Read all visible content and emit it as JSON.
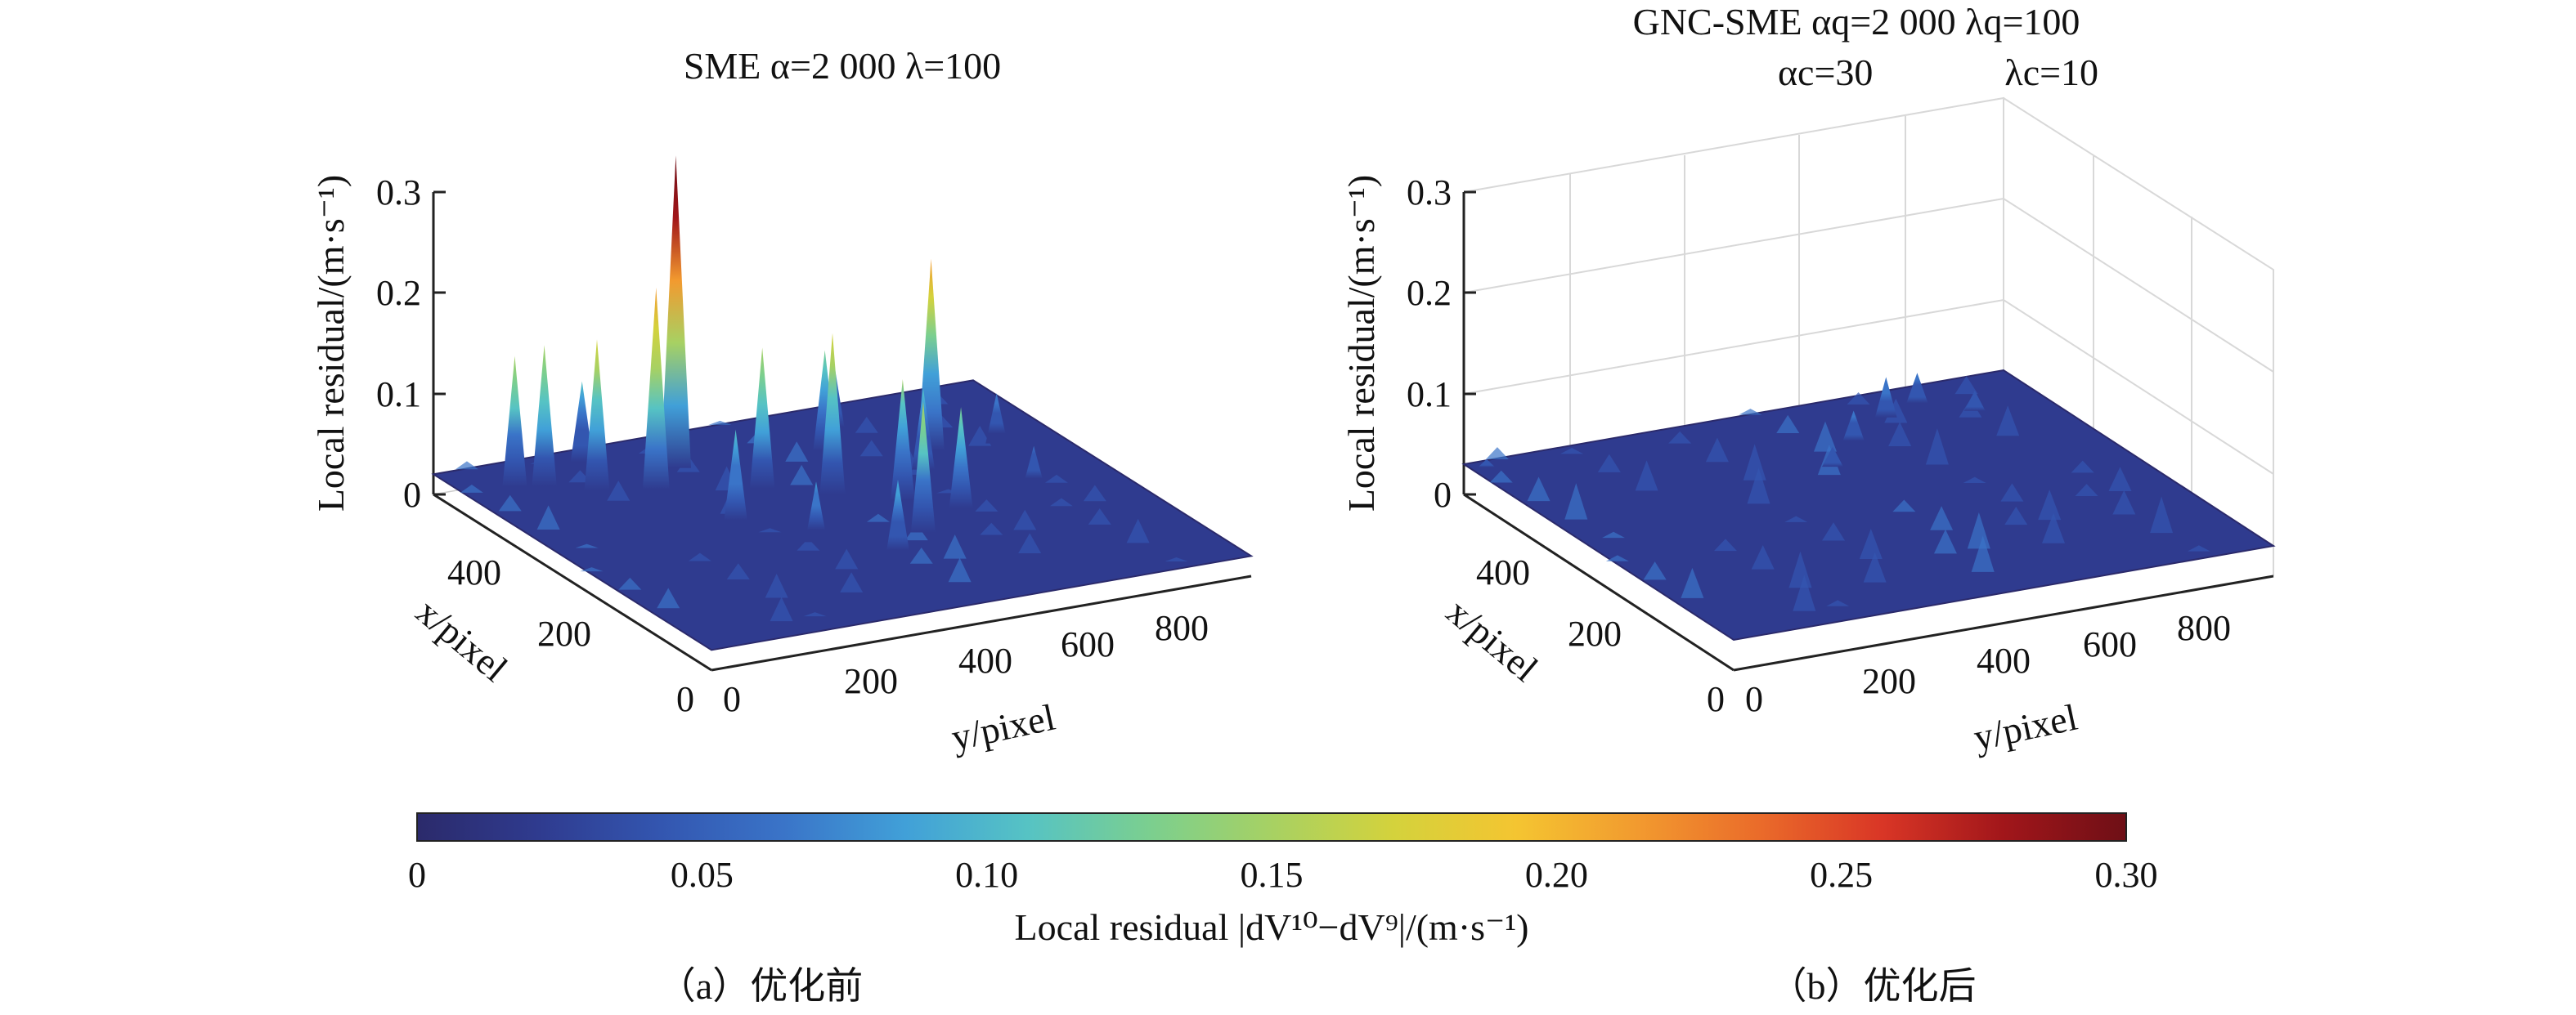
{
  "chart_data": [
    {
      "type": "surface3d",
      "panel": "a",
      "title": "SME α=2 000  λ=100",
      "zlabel": "Local residual/(m·s⁻¹)",
      "xlabel": "x/pixel",
      "ylabel": "y/pixel",
      "z_ticks": [
        "0",
        "0.1",
        "0.2",
        "0.3"
      ],
      "x_ticks": [
        "0",
        "200",
        "400"
      ],
      "y_ticks": [
        "0",
        "200",
        "400",
        "600",
        "800"
      ],
      "zlim": [
        0,
        0.3
      ],
      "xlim": [
        0,
        500
      ],
      "ylim": [
        0,
        900
      ],
      "grid": false,
      "baseline_level": 0.02,
      "peaks": [
        {
          "x": 420,
          "y": 330,
          "z": 0.33
        },
        {
          "x": 380,
          "y": 260,
          "z": 0.22
        },
        {
          "x": 430,
          "y": 120,
          "z": 0.16
        },
        {
          "x": 400,
          "y": 180,
          "z": 0.17
        },
        {
          "x": 440,
          "y": 80,
          "z": 0.15
        },
        {
          "x": 300,
          "y": 480,
          "z": 0.18
        },
        {
          "x": 340,
          "y": 400,
          "z": 0.16
        },
        {
          "x": 260,
          "y": 560,
          "z": 0.14
        },
        {
          "x": 220,
          "y": 620,
          "z": 0.12
        },
        {
          "x": 360,
          "y": 700,
          "z": 0.21
        },
        {
          "x": 320,
          "y": 650,
          "z": 0.1
        },
        {
          "x": 180,
          "y": 520,
          "z": 0.15
        },
        {
          "x": 150,
          "y": 450,
          "z": 0.09
        },
        {
          "x": 400,
          "y": 560,
          "z": 0.12
        },
        {
          "x": 280,
          "y": 300,
          "z": 0.11
        },
        {
          "x": 450,
          "y": 620,
          "z": 0.09
        },
        {
          "x": 200,
          "y": 360,
          "z": 0.08
        },
        {
          "x": 350,
          "y": 800,
          "z": 0.07
        },
        {
          "x": 470,
          "y": 220,
          "z": 0.1
        },
        {
          "x": 240,
          "y": 760,
          "z": 0.06
        }
      ]
    },
    {
      "type": "surface3d",
      "panel": "b",
      "title_line1": "GNC-SME αq=2 000    λq=100",
      "title_line2": "αc=30              λc=10",
      "zlabel": "Local residual/(m·s⁻¹)",
      "xlabel": "x/pixel",
      "ylabel": "y/pixel",
      "z_ticks": [
        "0",
        "0.1",
        "0.2",
        "0.3"
      ],
      "x_ticks": [
        "0",
        "200",
        "400"
      ],
      "y_ticks": [
        "0",
        "200",
        "400",
        "600",
        "800"
      ],
      "zlim": [
        0,
        0.3
      ],
      "xlim": [
        0,
        500
      ],
      "ylim": [
        0,
        900
      ],
      "grid": true,
      "baseline_level": 0.03,
      "peaks": [
        {
          "x": 440,
          "y": 650,
          "z": 0.07
        },
        {
          "x": 400,
          "y": 560,
          "z": 0.06
        },
        {
          "x": 460,
          "y": 720,
          "z": 0.06
        },
        {
          "x": 350,
          "y": 480,
          "z": 0.05
        },
        {
          "x": 420,
          "y": 780,
          "z": 0.05
        },
        {
          "x": 480,
          "y": 20,
          "z": 0.04
        }
      ]
    }
  ],
  "colorbar": {
    "ticks": [
      "0",
      "0.05",
      "0.10",
      "0.15",
      "0.20",
      "0.25",
      "0.30"
    ],
    "range": [
      0,
      0.3
    ],
    "label": "Local residual |dV¹⁰−dV⁹|/(m·s⁻¹)",
    "colors": [
      "#2b2a6b",
      "#2f3b8f",
      "#3356b0",
      "#3a74c8",
      "#41a0d8",
      "#56c3c4",
      "#7bcf8f",
      "#a7d163",
      "#d4d23c",
      "#f4c531",
      "#f29a2f",
      "#ea6b2a",
      "#d93626",
      "#a1161a",
      "#6e0f16"
    ]
  },
  "captions": {
    "a": "（a）优化前",
    "b": "（b）优化后"
  }
}
